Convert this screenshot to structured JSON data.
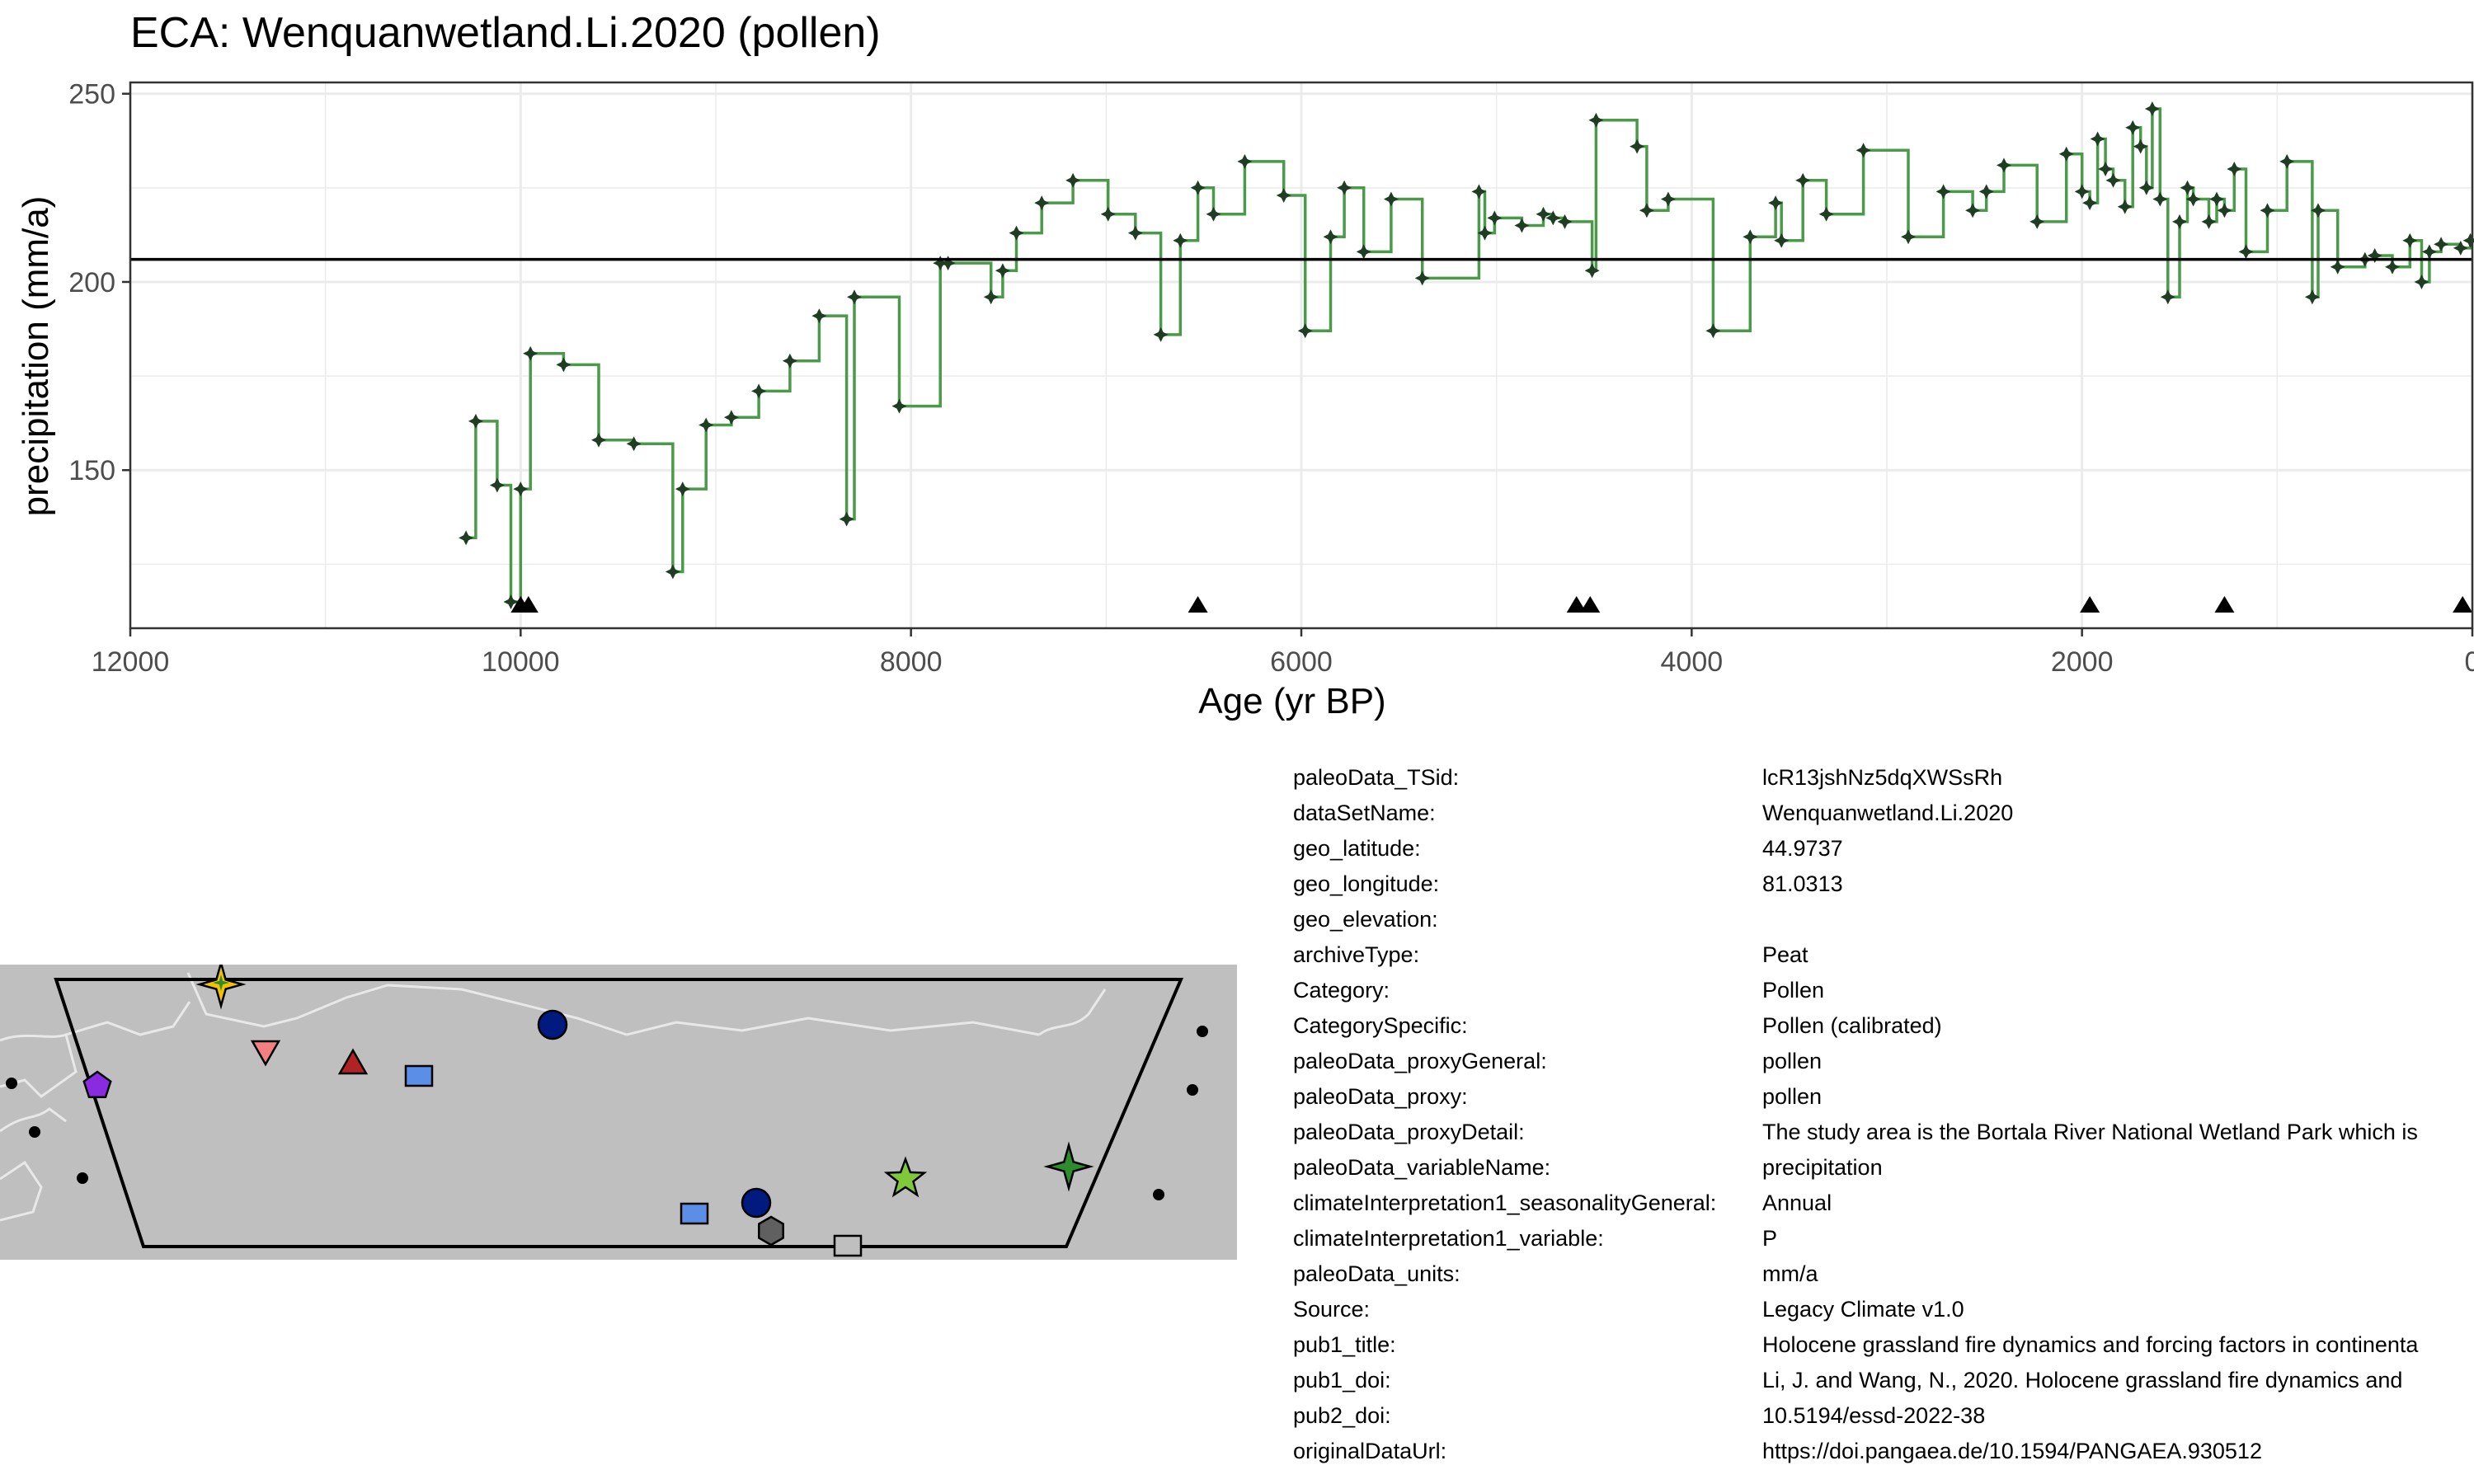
{
  "title": "ECA: Wenquanwetland.Li.2020 (pollen)",
  "colors": {
    "line": "#4a9a4a",
    "point": "#1f3d22",
    "mean_line": "#000000",
    "grid": "#ebebeb",
    "map_land": "#bfbfbf",
    "map_border": "#e8e8e8"
  },
  "chart_data": {
    "type": "line",
    "title": "ECA: Wenquanwetland.Li.2020 (pollen)",
    "xlabel": "Age (yr BP)",
    "ylabel": "precipitation (mm/a)",
    "xlim": [
      12000,
      0
    ],
    "ylim": [
      108,
      253
    ],
    "x_reversed": true,
    "grid": true,
    "x_ticks": [
      12000,
      10000,
      8000,
      6000,
      4000,
      2000,
      0
    ],
    "y_ticks": [
      150,
      200,
      250
    ],
    "x_tick_labels": [
      "12000",
      "10000",
      "8000",
      "6000",
      "4000",
      "2000",
      "0"
    ],
    "y_tick_labels": [
      "150",
      "200",
      "250"
    ],
    "mean": 206,
    "series": [
      {
        "style": "step",
        "x": [
          10280,
          10230,
          10120,
          10050,
          10000,
          9950,
          9780,
          9600,
          9420,
          9220,
          9170,
          9050,
          8920,
          8780,
          8620,
          8470,
          8330,
          8290,
          8060,
          7850,
          7810,
          7590,
          7530,
          7460,
          7330,
          7170,
          6990,
          6850,
          6720,
          6620,
          6530,
          6450,
          6290,
          6090,
          5980,
          5850,
          5780,
          5680,
          5540,
          5380,
          5090,
          5060,
          5010,
          4870,
          4760,
          4710,
          4650,
          4510,
          4490,
          4280,
          4230,
          4120,
          3890,
          3700,
          3570,
          3540,
          3430,
          3310,
          3120,
          2890,
          2710,
          2560,
          2490,
          2400,
          2230,
          2080,
          2000,
          1960,
          1920,
          1880,
          1840,
          1780,
          1740,
          1700,
          1670,
          1640,
          1600,
          1560,
          1500,
          1460,
          1430,
          1350,
          1310,
          1270,
          1220,
          1160,
          1050,
          950,
          820,
          790,
          690,
          550,
          500,
          410,
          320,
          260,
          220,
          160,
          60,
          10
        ],
        "y": [
          132,
          163,
          146,
          115,
          145,
          181,
          178,
          158,
          157,
          123,
          145,
          162,
          164,
          171,
          179,
          191,
          137,
          196,
          167,
          205,
          205,
          196,
          203,
          213,
          221,
          227,
          218,
          213,
          186,
          211,
          225,
          218,
          232,
          223,
          187,
          212,
          225,
          208,
          222,
          201,
          224,
          213,
          217,
          215,
          218,
          217,
          216,
          203,
          243,
          236,
          219,
          222,
          187,
          212,
          221,
          211,
          227,
          218,
          235,
          212,
          224,
          219,
          224,
          231,
          216,
          234,
          224,
          221,
          238,
          230,
          227,
          220,
          241,
          236,
          225,
          246,
          222,
          196,
          216,
          225,
          222,
          216,
          222,
          219,
          230,
          208,
          219,
          232,
          196,
          219,
          204,
          206,
          207,
          204,
          211,
          200,
          208,
          210,
          209,
          211
        ]
      }
    ],
    "markers": {
      "shape": "triangle",
      "x": [
        10000,
        9960,
        6530,
        4590,
        4520,
        1960,
        1270,
        50
      ]
    }
  },
  "map": {
    "sites": [
      {
        "shape": "star4",
        "color": "#f2c200",
        "x": 268,
        "y": 1194
      },
      {
        "shape": "star4-small",
        "color": "#2e8b2e",
        "x": 268,
        "y": 1192
      },
      {
        "shape": "triangle-down",
        "color": "#f28080",
        "x": 322,
        "y": 1275
      },
      {
        "shape": "triangle",
        "color": "#b22222",
        "x": 428,
        "y": 1290
      },
      {
        "shape": "square",
        "color": "#5b8ee6",
        "x": 508,
        "y": 1305
      },
      {
        "shape": "circle",
        "color": "#001a80",
        "x": 670,
        "y": 1243
      },
      {
        "shape": "pentagon",
        "color": "#8a2be2",
        "x": 118,
        "y": 1317
      },
      {
        "shape": "circle",
        "color": "#001a80",
        "x": 917,
        "y": 1459
      },
      {
        "shape": "square",
        "color": "#5b8ee6",
        "x": 842,
        "y": 1472
      },
      {
        "shape": "hexagon",
        "color": "#606060",
        "x": 935,
        "y": 1493
      },
      {
        "shape": "square",
        "color": "#bfbfbf",
        "x": 1028,
        "y": 1511
      },
      {
        "shape": "star5",
        "color": "#7ec83a",
        "x": 1098,
        "y": 1430
      },
      {
        "shape": "star4",
        "color": "#2e8b2e",
        "x": 1296,
        "y": 1415
      }
    ],
    "dots": [
      {
        "x": 14,
        "y": 1314
      },
      {
        "x": 42,
        "y": 1373
      },
      {
        "x": 100,
        "y": 1429
      },
      {
        "x": 1458,
        "y": 1251
      },
      {
        "x": 1446,
        "y": 1322
      },
      {
        "x": 1405,
        "y": 1449
      }
    ]
  },
  "metadata": [
    {
      "key": "paleoData_TSid:",
      "value": "lcR13jshNz5dqXWSsRh"
    },
    {
      "key": "dataSetName:",
      "value": "Wenquanwetland.Li.2020"
    },
    {
      "key": "geo_latitude:",
      "value": "44.9737"
    },
    {
      "key": "geo_longitude:",
      "value": "81.0313"
    },
    {
      "key": "geo_elevation:",
      "value": ""
    },
    {
      "key": "archiveType:",
      "value": "Peat"
    },
    {
      "key": "Category:",
      "value": "Pollen"
    },
    {
      "key": "CategorySpecific:",
      "value": "Pollen (calibrated)"
    },
    {
      "key": "paleoData_proxyGeneral:",
      "value": "pollen"
    },
    {
      "key": "paleoData_proxy:",
      "value": "pollen"
    },
    {
      "key": "paleoData_proxyDetail:",
      "value": "The study area is the Bortala River National Wetland Park which is"
    },
    {
      "key": "paleoData_variableName:",
      "value": "precipitation"
    },
    {
      "key": "climateInterpretation1_seasonalityGeneral:",
      "value": "Annual"
    },
    {
      "key": "climateInterpretation1_variable:",
      "value": "P"
    },
    {
      "key": "paleoData_units:",
      "value": "mm/a"
    },
    {
      "key": "Source:",
      "value": "Legacy Climate v1.0"
    },
    {
      "key": "pub1_title:",
      "value": "Holocene grassland fire dynamics and forcing factors in continenta"
    },
    {
      "key": "pub1_doi:",
      "value": "Li, J. and Wang, N., 2020. Holocene grassland fire dynamics and"
    },
    {
      "key": "pub2_doi:",
      "value": "10.5194/essd-2022-38"
    },
    {
      "key": "originalDataUrl:",
      "value": "https://doi.pangaea.de/10.1594/PANGAEA.930512"
    }
  ]
}
